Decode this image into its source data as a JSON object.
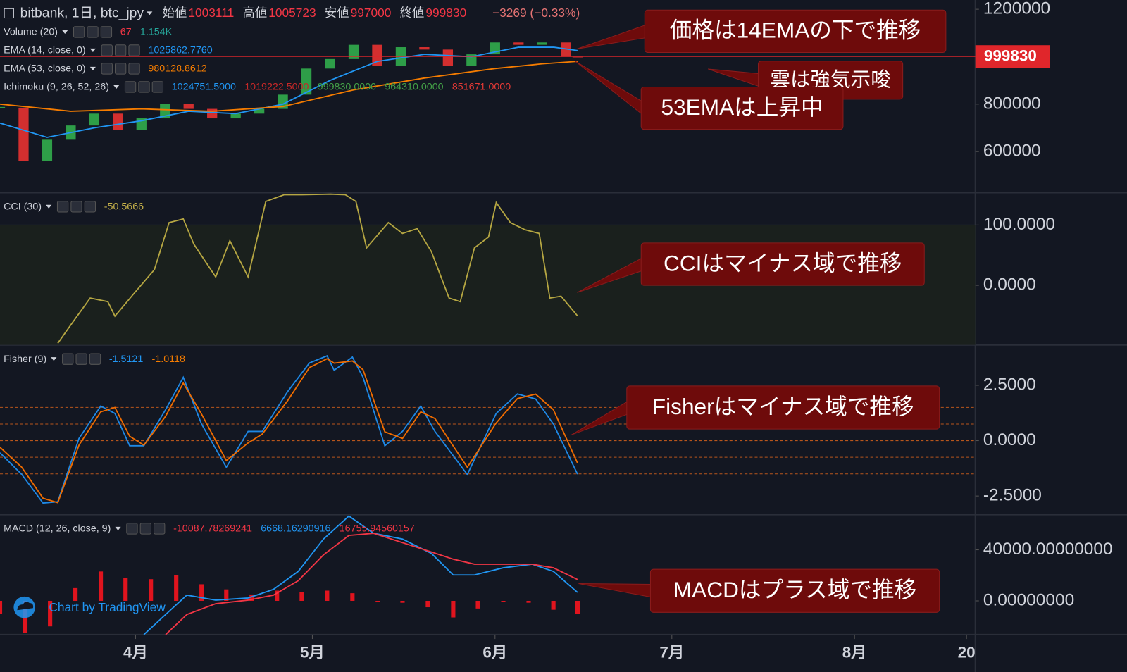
{
  "header": {
    "symbol": "bitbank, 1日, btc_jpy",
    "ohlc": [
      {
        "label": "始値",
        "value": "1003111"
      },
      {
        "label": "高値",
        "value": "1005723"
      },
      {
        "label": "安値",
        "value": "997000"
      },
      {
        "label": "終値",
        "value": "999830"
      }
    ],
    "change": "−3269 (−0.33%)"
  },
  "watermark": "Chart by TradingView",
  "annotations": [
    "価格は14EMAの下で推移",
    "雲は強気示唆",
    "53EMAは上昇中",
    "CCIはマイナス域で推移",
    "Fisherはマイナス域で推移",
    "MACDはプラス域で推移"
  ],
  "chart_data": [
    {
      "type": "candlestick",
      "x": [
        68,
        72,
        76,
        80,
        84,
        88,
        92,
        96,
        100,
        104,
        108,
        112,
        116,
        120,
        124,
        128,
        132,
        136,
        140,
        144,
        148,
        152,
        156,
        160,
        164,
        166
      ],
      "values": [
        785000,
        560000,
        650000,
        710000,
        760000,
        690000,
        740000,
        800000,
        780000,
        740000,
        760000,
        780000,
        840000,
        950000,
        990000,
        1050000,
        960000,
        1040000,
        1030000,
        960000,
        1010000,
        1060000,
        1050000,
        1060000,
        1000000,
        999830
      ],
      "up_color": "#2e9e48",
      "down_color": "#d32f2f",
      "series": [
        {
          "name": "EMA (14, close, 0)",
          "color": "#2196f3",
          "x": [
            68,
            76,
            84,
            92,
            100,
            108,
            116,
            124,
            132,
            140,
            148,
            156,
            162,
            166
          ],
          "values": [
            720000,
            660000,
            700000,
            730000,
            770000,
            760000,
            800000,
            900000,
            980000,
            1010000,
            1000000,
            1040000,
            1040000,
            1025862.776
          ]
        },
        {
          "name": "EMA (53, close, 0)",
          "color": "#f57c00",
          "x": [
            68,
            80,
            92,
            104,
            116,
            128,
            140,
            152,
            160,
            166
          ],
          "values": [
            800000,
            770000,
            780000,
            770000,
            790000,
            860000,
            910000,
            950000,
            970000,
            980128.8612
          ]
        }
      ],
      "xlim": [
        68,
        233.5
      ],
      "ylim": [
        427000,
        1239000
      ],
      "yticks": [
        600000,
        800000,
        1200000
      ],
      "last_price_color": "#e0262b",
      "legend": [
        {
          "name": "Volume (20)",
          "values": [
            "67",
            "1.154K"
          ],
          "colors": [
            "#f23645",
            "#26a69a"
          ]
        },
        {
          "name": "EMA (14, close, 0)",
          "values": [
            "1025862.7760"
          ],
          "colors": [
            "#2196f3"
          ]
        },
        {
          "name": "EMA (53, close, 0)",
          "values": [
            "980128.8612"
          ],
          "colors": [
            "#f57c00"
          ]
        },
        {
          "name": "Ichimoku (9, 26, 52, 26)",
          "values": [
            "1024751.5000",
            "1019222.5000",
            "999830.0000",
            "964310.0000",
            "851671.0000"
          ],
          "colors": [
            "#2196f3",
            "#c62828",
            "#43a047",
            "#43a047",
            "#e53935"
          ]
        }
      ]
    },
    {
      "type": "line",
      "series": [
        {
          "name": "CCI (30)",
          "color": "#b5a642",
          "x": [
            77.8,
            80.2,
            83.3,
            86.3,
            87.5,
            90.6,
            94.2,
            96.7,
            99.1,
            100.9,
            104.6,
            107.0,
            110.1,
            113.1,
            116.2,
            119.2,
            124.1,
            126.6,
            128.4,
            130.2,
            133.9,
            136.3,
            138.8,
            141.2,
            144.2,
            146.1,
            148.5,
            150.9,
            152.2,
            154.6,
            157.1,
            159.5,
            161.3,
            163.2,
            166.0
          ],
          "values": [
            -96,
            -63,
            -21,
            -27,
            -51,
            -15,
            26,
            104,
            110,
            68,
            14,
            74,
            14,
            139,
            150,
            150,
            151,
            150,
            139,
            62,
            104,
            86,
            94,
            56,
            -21,
            -27,
            62,
            80,
            137,
            104,
            92,
            86,
            -21,
            -18,
            -50.5666
          ]
        }
      ],
      "band": [
        -100,
        100
      ],
      "band_color": "#1a201d",
      "xlim": [
        68,
        233.5
      ],
      "ylim": [
        -98.8,
        153.6
      ],
      "yticks": [
        {
          "value": 0,
          "label": "0.0000"
        },
        {
          "value": 100,
          "label": "100.0000"
        }
      ],
      "legend": [
        {
          "name": "CCI (30)",
          "values": [
            "-50.5666"
          ],
          "colors": [
            "#c9b44a"
          ]
        }
      ]
    },
    {
      "type": "line",
      "series": [
        {
          "name": "Fisher",
          "color": "#1e88e5",
          "x": [
            68,
            71.7,
            75.3,
            77.8,
            81.4,
            85.1,
            87.5,
            90,
            92.4,
            96.1,
            99.1,
            102.2,
            106.4,
            110.1,
            112.5,
            116.8,
            120.5,
            123.5,
            124.7,
            127.8,
            129.6,
            133.3,
            136.3,
            139.4,
            141.8,
            147.3,
            152.2,
            155.8,
            158.9,
            161.9,
            166
          ],
          "values": [
            -0.55,
            -1.53,
            -2.82,
            -2.76,
            0.1,
            1.56,
            1.23,
            -0.23,
            -0.23,
            1.4,
            2.86,
            0.75,
            -1.2,
            0.42,
            0.42,
            2.21,
            3.51,
            3.83,
            3.18,
            3.77,
            2.86,
            -0.23,
            0.42,
            1.56,
            0.42,
            -1.53,
            1.23,
            2.11,
            1.88,
            0.75,
            -1.5121
          ]
        },
        {
          "name": "Trigger",
          "color": "#ef6c00",
          "x": [
            68,
            71.7,
            75.3,
            77.8,
            81.4,
            85.1,
            87.5,
            90,
            92.4,
            96.1,
            99.1,
            102.2,
            106.4,
            110.1,
            112.5,
            116.8,
            120.5,
            123.5,
            124.7,
            127.8,
            129.6,
            133.3,
            136.3,
            139.4,
            141.8,
            147.3,
            152.2,
            155.8,
            158.9,
            161.9,
            166
          ],
          "values": [
            -0.3,
            -1.2,
            -2.6,
            -2.8,
            -0.2,
            1.3,
            1.5,
            0.2,
            -0.2,
            1.1,
            2.6,
            1.2,
            -0.9,
            -0.1,
            0.3,
            1.8,
            3.3,
            3.7,
            3.5,
            3.6,
            3.2,
            0.4,
            0.1,
            1.3,
            1.0,
            -1.2,
            0.8,
            1.9,
            2.1,
            1.4,
            -1.0118
          ]
        }
      ],
      "levels": [
        1.5,
        0.75,
        0,
        -0.75,
        -1.5
      ],
      "level_color": "#b8561c",
      "xlim": [
        68,
        233.5
      ],
      "ylim": [
        -3.34,
        4.32
      ],
      "yticks": [
        {
          "value": -2.5,
          "label": "-2.5000"
        },
        {
          "value": 0,
          "label": "0.0000"
        },
        {
          "value": 2.5,
          "label": "2.5000"
        }
      ],
      "legend": [
        {
          "name": "Fisher (9)",
          "values": [
            "-1.5121",
            "-1.0118"
          ],
          "colors": [
            "#2196f3",
            "#f57c00"
          ]
        }
      ]
    },
    {
      "type": "line",
      "series": [
        {
          "name": "Histogram",
          "style": "histogram",
          "color": "#e0141e",
          "x": [
            68,
            72.3,
            76.5,
            80.8,
            85.1,
            89.3,
            93.6,
            97.9,
            102.2,
            106.4,
            110.7,
            115,
            119.2,
            123.5,
            127.8,
            132.1,
            136.3,
            140.6,
            144.9,
            149.1,
            153.4,
            157.7,
            161.9,
            166
          ],
          "values": [
            -10000,
            -25000,
            -20000,
            10000,
            23000,
            18000,
            17000,
            20000,
            13000,
            9000,
            5000,
            8000,
            7000,
            8000,
            6000,
            -1000,
            -1500,
            -5000,
            -13000,
            -6000,
            -1000,
            -1500,
            -7000,
            -10087.78269241
          ]
        },
        {
          "name": "MACD",
          "color": "#2196f3",
          "x": [
            92.4,
            96.1,
            99.7,
            104.6,
            110.1,
            114.4,
            118.6,
            122.9,
            127.2,
            131.4,
            136.3,
            141.2,
            144.9,
            148.5,
            153.4,
            158.3,
            161.9,
            166
          ],
          "values": [
            -26479,
            -10704,
            4507,
            563,
            2254,
            9014,
            23099,
            48451,
            66479,
            52958,
            48451,
            37183,
            20282,
            20282,
            25916,
            28732,
            23099,
            6668.16290916
          ]
        },
        {
          "name": "Signal",
          "color": "#f23645",
          "x": [
            96.1,
            99.7,
            104.6,
            110.1,
            114.4,
            118.6,
            122.9,
            127.2,
            131.4,
            136.3,
            141.2,
            144.9,
            148.5,
            153.4,
            158.3,
            161.9,
            166
          ],
          "values": [
            -26479,
            -10704,
            -2254,
            563,
            4507,
            15775,
            36056,
            51268,
            52958,
            45634,
            38310,
            32676,
            28732,
            28732,
            28732,
            25916,
            16755.94560157
          ]
        }
      ],
      "xlim": [
        68,
        233.5
      ],
      "ylim": [
        -26479,
        67606
      ],
      "yticks": [
        {
          "value": 0,
          "label": "0.00000000"
        },
        {
          "value": 40000,
          "label": "40000.00000000"
        }
      ],
      "xticks": [
        {
          "value": 91,
          "label": "4月"
        },
        {
          "value": 121,
          "label": "5月"
        },
        {
          "value": 152,
          "label": "6月"
        },
        {
          "value": 182,
          "label": "7月"
        },
        {
          "value": 213,
          "label": "8月"
        },
        {
          "value": 232,
          "label": "20"
        }
      ],
      "legend": [
        {
          "name": "MACD (12, 26, close, 9)",
          "values": [
            "-10087.78269241",
            "6668.16290916",
            "16755.94560157"
          ],
          "colors": [
            "#f23645",
            "#2196f3",
            "#f23645"
          ]
        }
      ]
    }
  ]
}
